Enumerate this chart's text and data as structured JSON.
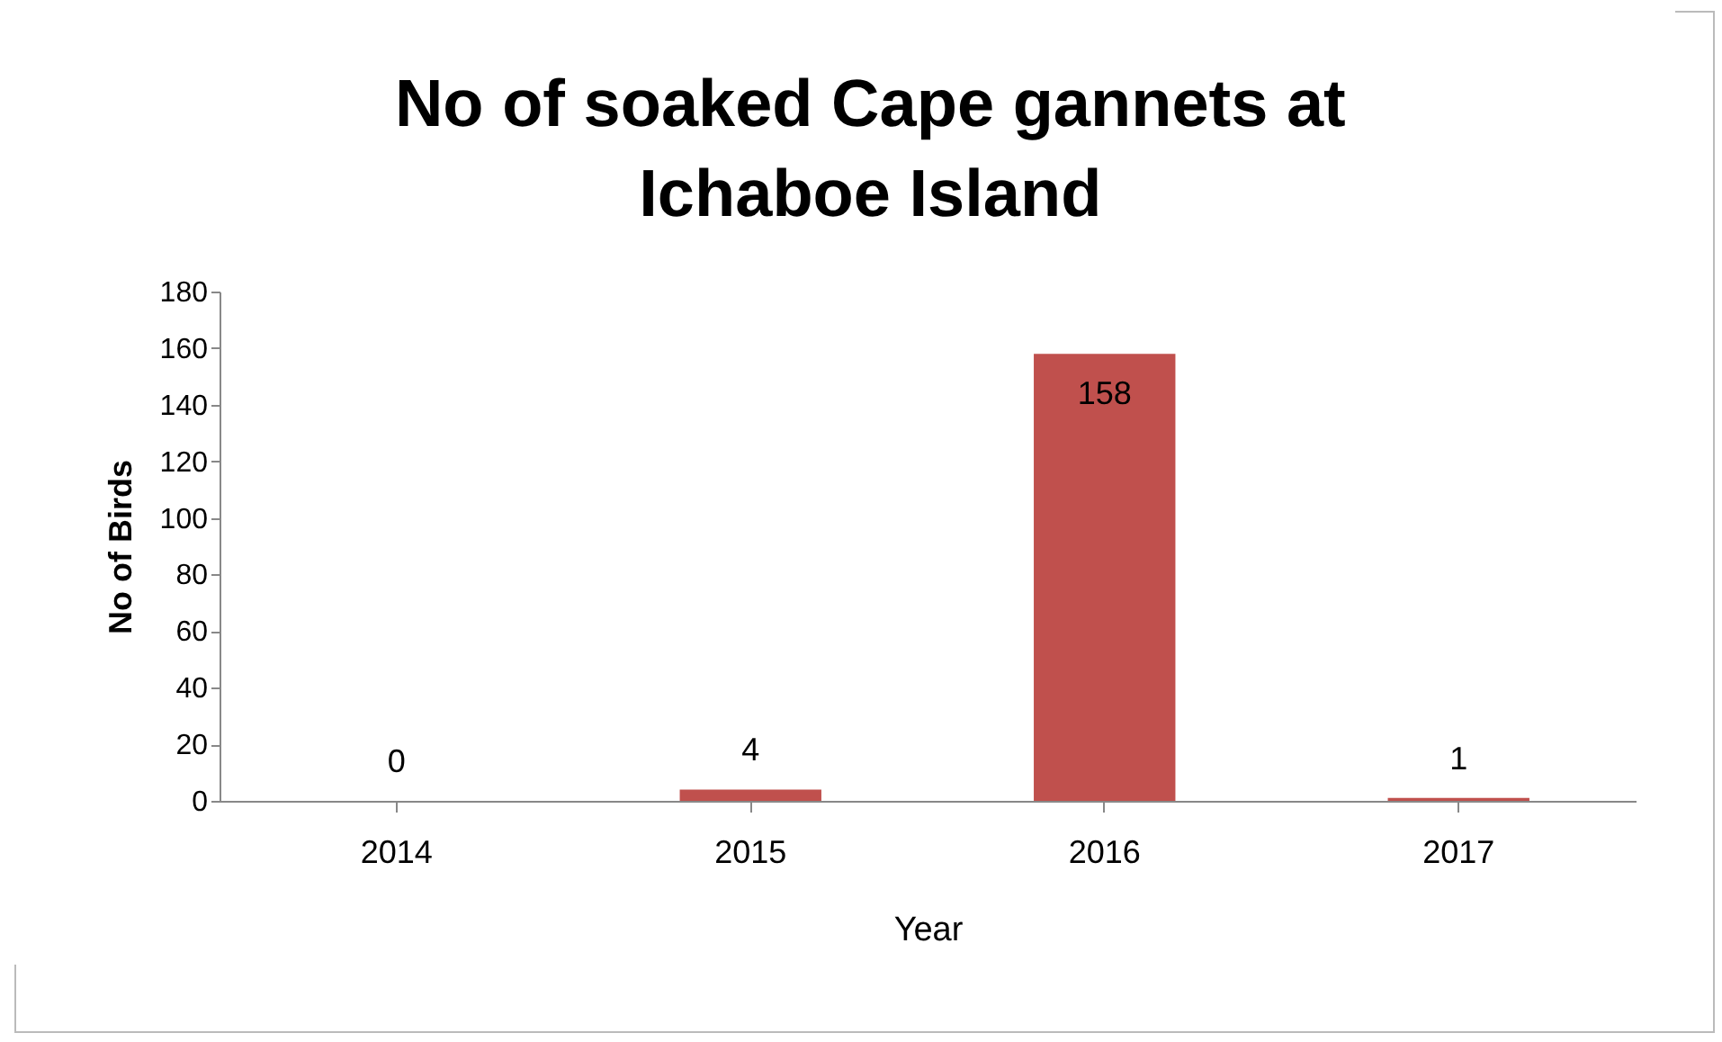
{
  "chart_data": {
    "type": "bar",
    "title": "No of soaked Cape gannets at Ichaboe Island",
    "xlabel": "Year",
    "ylabel": "No of Birds",
    "categories": [
      "2014",
      "2015",
      "2016",
      "2017"
    ],
    "values": [
      0,
      4,
      158,
      1
    ],
    "color": "#c0504d",
    "ylim": [
      0,
      180
    ],
    "yticks": [
      0,
      20,
      40,
      60,
      80,
      100,
      120,
      140,
      160,
      180
    ],
    "data_labels": true,
    "grid": false
  }
}
